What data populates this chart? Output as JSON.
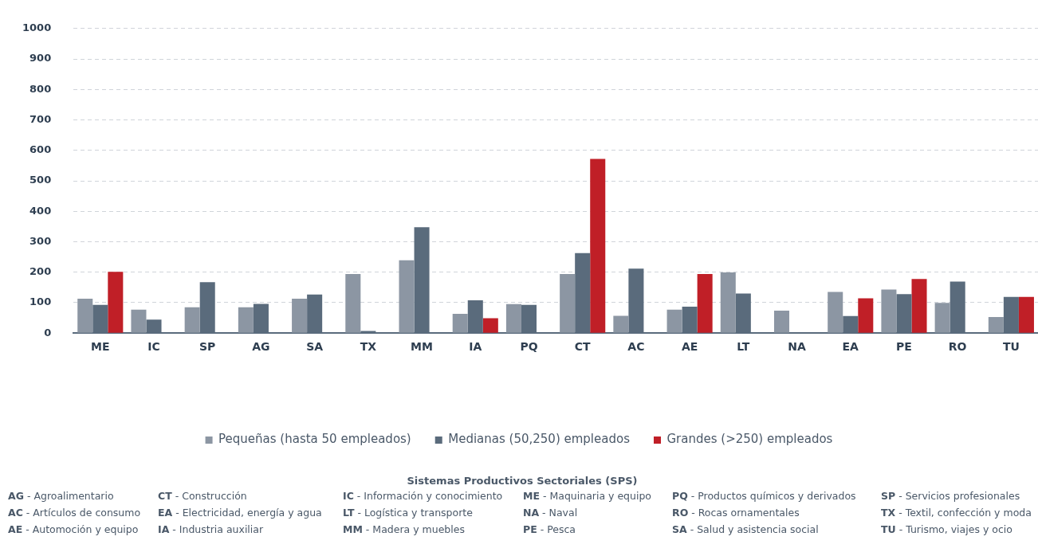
{
  "chart_data": {
    "type": "bar",
    "categories": [
      "ME",
      "IC",
      "SP",
      "AG",
      "SA",
      "TX",
      "MM",
      "IA",
      "PQ",
      "CT",
      "AC",
      "AE",
      "LT",
      "NA",
      "EA",
      "PE",
      "RO",
      "TU"
    ],
    "series": [
      {
        "name": "Pequeñas (hasta 50 empleados)",
        "color": "#8c96a3",
        "values": [
          113,
          77,
          85,
          85,
          113,
          194,
          239,
          63,
          95,
          194,
          57,
          77,
          199,
          74,
          135,
          143,
          99,
          53
        ]
      },
      {
        "name": "Medianas (50,250) empleados",
        "color": "#5a6b7c",
        "values": [
          93,
          44,
          167,
          96,
          127,
          7,
          348,
          108,
          93,
          263,
          212,
          87,
          130,
          null,
          56,
          128,
          169,
          119
        ]
      },
      {
        "name": "Grandes (>250) empleados",
        "color": "#c01f27",
        "values": [
          201,
          null,
          null,
          null,
          null,
          null,
          null,
          49,
          null,
          572,
          null,
          194,
          null,
          null,
          114,
          178,
          null,
          119
        ]
      }
    ],
    "ylim": [
      0,
      1000
    ],
    "yticks": [
      0,
      100,
      200,
      300,
      400,
      500,
      600,
      700,
      800,
      900,
      1000
    ],
    "grid": "y",
    "legend": "bottom",
    "annotations": [
      "Sistemas Productivos Sectoriales (SPS)",
      "AG - Agroalimentario",
      "CT - Construcción",
      "IC - Información y conocimiento",
      "ME - Maquinaria y equipo",
      "PQ - Productos químicos y derivados",
      "SP - Servicios profesionales",
      "AC - Artículos de consumo",
      "EA - Electricidad, energía y agua",
      "LT - Logística y transporte",
      "NA - Naval",
      "RO - Rocas ornamentales",
      "TX - Textil, confección y moda",
      "AE - Automoción y equipo",
      "IA - Industria auxiliar",
      "MM - Madera y muebles",
      "PE - Pesca",
      "SA - Salud y asistencia social",
      "TU - Turismo, viajes y ocio"
    ]
  }
}
